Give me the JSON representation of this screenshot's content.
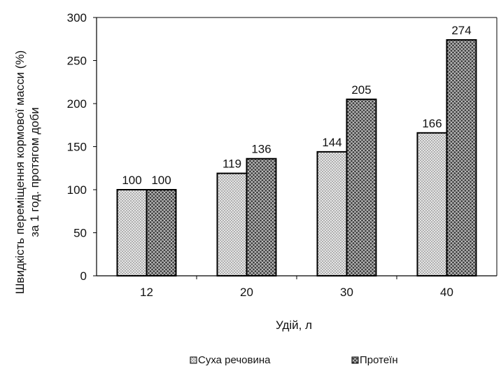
{
  "chart_data": {
    "type": "bar",
    "title": "",
    "xlabel": "Удій, л",
    "ylabel_lines": [
      "Швидкість переміщення кормової масси (%)",
      "за 1 год. протягом доби"
    ],
    "categories": [
      "12",
      "20",
      "30",
      "40"
    ],
    "ylim": [
      0,
      300
    ],
    "yticks": [
      0,
      50,
      100,
      150,
      200,
      250,
      300
    ],
    "grid": false,
    "legend_position": "bottom",
    "series": [
      {
        "name": "Суха речовина",
        "values": [
          100,
          119,
          144,
          166
        ],
        "color": "#c9c9c9",
        "pattern": "fine-dots"
      },
      {
        "name": "Протеїн",
        "values": [
          100,
          136,
          205,
          274
        ],
        "color": "#555555",
        "pattern": "crosshatch"
      }
    ],
    "data_labels": [
      [
        "100",
        "119",
        "144",
        "166"
      ],
      [
        "100",
        "136",
        "205",
        "274"
      ]
    ]
  }
}
